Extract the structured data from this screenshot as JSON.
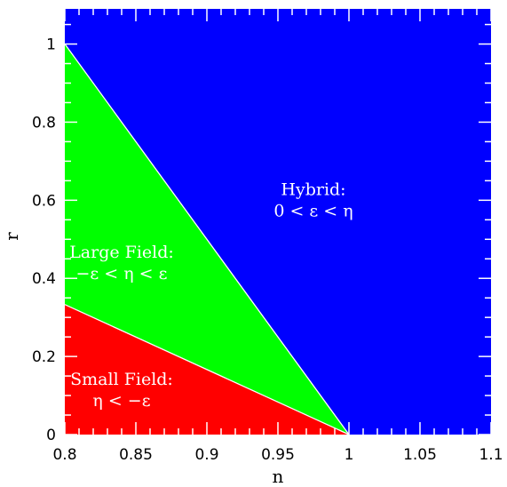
{
  "chart_data": {
    "type": "area",
    "xlabel": "n",
    "ylabel": "r",
    "xlim": [
      0.8,
      1.1
    ],
    "ylim": [
      0,
      1.09
    ],
    "x_ticks": [
      "0.8",
      "0.85",
      "0.9",
      "0.95",
      "1",
      "1.05",
      "1.1"
    ],
    "y_ticks": [
      "0",
      "0.2",
      "0.4",
      "0.6",
      "0.8",
      "1"
    ],
    "boundaries": [
      {
        "name": "large-field-upper-boundary",
        "points": [
          [
            0.8,
            1.0
          ],
          [
            1.0,
            0.0
          ]
        ]
      },
      {
        "name": "small-field-upper-boundary",
        "points": [
          [
            0.8,
            0.333
          ],
          [
            1.0,
            0.0
          ]
        ]
      }
    ],
    "regions": [
      {
        "id": "hybrid",
        "color": "#0000ff",
        "title": "Hybrid:",
        "condition": "0 < ε < η",
        "polygon": [
          [
            0.8,
            1.0
          ],
          [
            1.0,
            0.0
          ],
          [
            1.1,
            0.0
          ],
          [
            1.1,
            1.09
          ],
          [
            0.8,
            1.09
          ]
        ],
        "label_at": [
          0.975,
          0.59
        ]
      },
      {
        "id": "large-field",
        "color": "#00ff00",
        "title": "Large Field:",
        "condition": "−ε < η < ε",
        "polygon": [
          [
            0.8,
            1.0
          ],
          [
            1.0,
            0.0
          ],
          [
            0.8,
            0.333
          ]
        ],
        "label_at": [
          0.84,
          0.43
        ]
      },
      {
        "id": "small-field",
        "color": "#ff0000",
        "title": "Small Field:",
        "condition": "η < −ε",
        "polygon": [
          [
            0.8,
            0.333
          ],
          [
            1.0,
            0.0
          ],
          [
            0.8,
            0.0
          ]
        ],
        "label_at": [
          0.84,
          0.105
        ]
      }
    ],
    "grid": false,
    "legend": "none"
  }
}
